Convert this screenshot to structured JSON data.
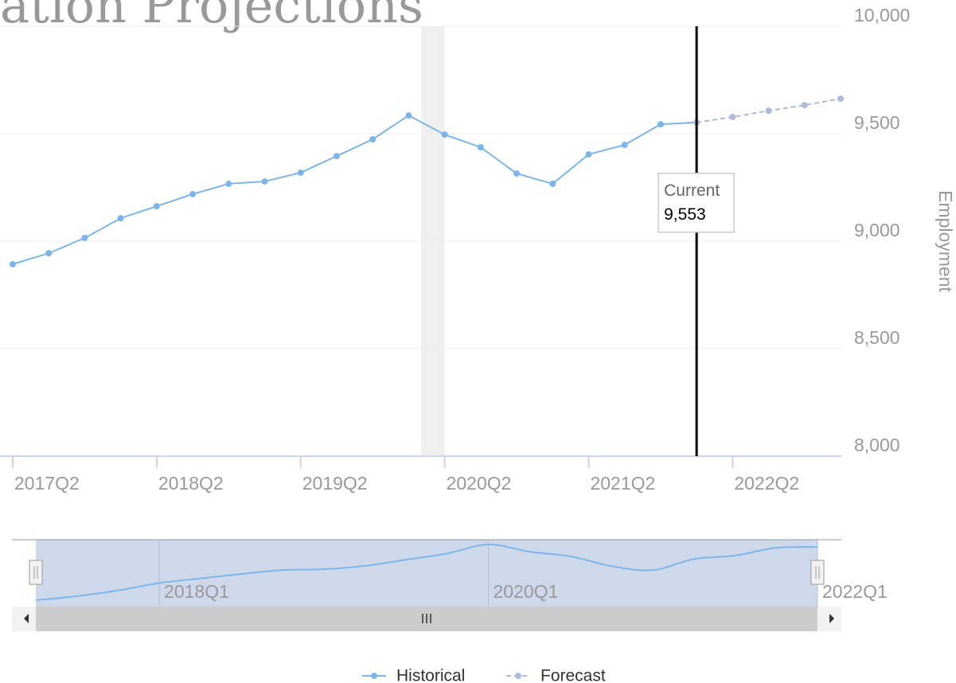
{
  "chart_data": {
    "type": "line",
    "title": "ation Projections",
    "y_axis_label": "Employment",
    "xlim": [
      0,
      23
    ],
    "xticks": [
      {
        "value": 0,
        "label": "2017Q2"
      },
      {
        "value": 4,
        "label": "2018Q2"
      },
      {
        "value": 8,
        "label": "2019Q2"
      },
      {
        "value": 12,
        "label": "2020Q2"
      },
      {
        "value": 16,
        "label": "2021Q2"
      },
      {
        "value": 20,
        "label": "2022Q2"
      }
    ],
    "ylim": [
      8000,
      10000
    ],
    "yticks": [
      {
        "value": 8000,
        "label": "8,000"
      },
      {
        "value": 8500,
        "label": "8,500"
      },
      {
        "value": 9000,
        "label": "9,000"
      },
      {
        "value": 9500,
        "label": "9,500"
      },
      {
        "value": 10000,
        "label": "10,000"
      }
    ],
    "grid": true,
    "series": [
      {
        "name": "Historical",
        "color": "#7cb5ec",
        "dashed": false,
        "values": [
          8893,
          8944,
          9015,
          9107,
          9163,
          9219,
          9267,
          9278,
          9319,
          9396,
          9474,
          9585,
          9496,
          9437,
          9315,
          9267,
          9404,
          9448,
          9544,
          9553,
          null,
          null,
          null,
          null
        ]
      },
      {
        "name": "Forecast",
        "color": "#aebbd8",
        "dashed": true,
        "values": [
          null,
          null,
          null,
          null,
          null,
          null,
          null,
          null,
          null,
          null,
          null,
          null,
          null,
          null,
          null,
          null,
          null,
          null,
          null,
          9553,
          9578,
          9607,
          9633,
          9663
        ]
      }
    ],
    "plot_band": {
      "from": 11.35,
      "to": 12,
      "color": "#efefef"
    },
    "plot_line": {
      "value": 19,
      "color": "#000000"
    },
    "tooltip": {
      "label": "Current",
      "value": 9553,
      "value_label": "9,553"
    },
    "navigator": {
      "xlim": [
        0,
        19
      ],
      "xticks": [
        {
          "value": 3,
          "label": "2018Q1"
        },
        {
          "value": 11,
          "label": "2020Q1"
        },
        {
          "value": 19,
          "label": "2022Q1"
        }
      ]
    },
    "legend": "bottom"
  }
}
